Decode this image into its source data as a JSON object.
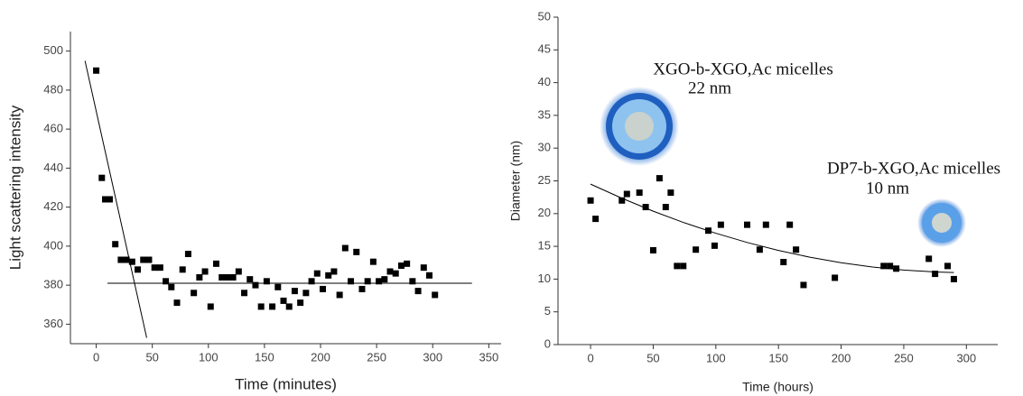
{
  "chart_data": [
    {
      "type": "scatter",
      "xlabel": "Time (minutes)",
      "ylabel": "Light scattering intensity",
      "xlim": [
        -23,
        361
      ],
      "ylim": [
        350,
        510
      ],
      "xticks": [
        0,
        50,
        100,
        150,
        200,
        250,
        300,
        350
      ],
      "yticks": [
        360,
        380,
        400,
        420,
        440,
        460,
        480,
        500
      ],
      "color": "#000000",
      "points": {
        "x": [
          0,
          5,
          8,
          12,
          17,
          22,
          27,
          32,
          37,
          42,
          47,
          52,
          57,
          62,
          67,
          72,
          77,
          82,
          87,
          92,
          97,
          102,
          107,
          112,
          117,
          122,
          127,
          132,
          137,
          142,
          147,
          152,
          157,
          162,
          167,
          172,
          177,
          182,
          187,
          192,
          197,
          202,
          207,
          212,
          217,
          222,
          227,
          232,
          237,
          242,
          247,
          252,
          257,
          262,
          267,
          272,
          277,
          282,
          287,
          292,
          297,
          302
        ],
        "values": [
          490,
          435,
          424,
          424,
          401,
          393,
          393,
          392,
          388,
          393,
          393,
          389,
          389,
          382,
          379,
          371,
          388,
          396,
          376,
          384,
          387,
          369,
          391,
          384,
          384,
          384,
          387,
          376,
          383,
          380,
          369,
          382,
          369,
          379,
          372,
          369,
          377,
          371,
          376,
          382,
          386,
          378,
          385,
          387,
          375,
          399,
          382,
          397,
          378,
          382,
          392,
          382,
          383,
          387,
          386,
          390,
          391,
          382,
          377,
          389,
          385,
          375
        ]
      },
      "fits": [
        {
          "x": [
            -10,
            45
          ],
          "values": [
            495,
            353
          ]
        },
        {
          "x": [
            10,
            335
          ],
          "values": [
            381,
            381
          ]
        }
      ]
    },
    {
      "type": "scatter",
      "xlabel": "Time (hours)",
      "ylabel": "Diameter (nm)",
      "xlim": [
        -26,
        325
      ],
      "ylim": [
        0,
        50
      ],
      "xticks": [
        0,
        50,
        100,
        150,
        200,
        250,
        300
      ],
      "yticks": [
        0,
        5,
        10,
        15,
        20,
        25,
        30,
        35,
        40,
        45,
        50
      ],
      "color": "#000000",
      "annotations": [
        "XGO-b-XGO,Ac micelles",
        "22 nm",
        "DP7-b-XGO,Ac micelles",
        "10 nm"
      ],
      "points": {
        "x": [
          0,
          4,
          25,
          29,
          39,
          44,
          50,
          55,
          60,
          64,
          69,
          74,
          84,
          94,
          99,
          104,
          125,
          135,
          140,
          154,
          159,
          164,
          170,
          195,
          234,
          239,
          244,
          270,
          275,
          285,
          290
        ],
        "values": [
          22,
          19.2,
          22,
          23,
          23.2,
          21,
          14.4,
          25.4,
          21,
          23.2,
          12,
          12,
          14.5,
          17.4,
          15.1,
          18.3,
          18.3,
          14.5,
          18.3,
          12.6,
          18.3,
          14.5,
          9.1,
          10.2,
          12,
          12,
          11.6,
          13.1,
          10.8,
          12,
          10
        ]
      },
      "fits": [
        {
          "x": [
            0,
            25,
            50,
            75,
            100,
            125,
            150,
            175,
            200,
            225,
            250,
            275,
            290
          ],
          "values": [
            24.5,
            22.35,
            20.37,
            18.59,
            17,
            15.59,
            14.38,
            13.34,
            12.5,
            11.84,
            11.38,
            11.09,
            11.01
          ]
        }
      ]
    }
  ]
}
